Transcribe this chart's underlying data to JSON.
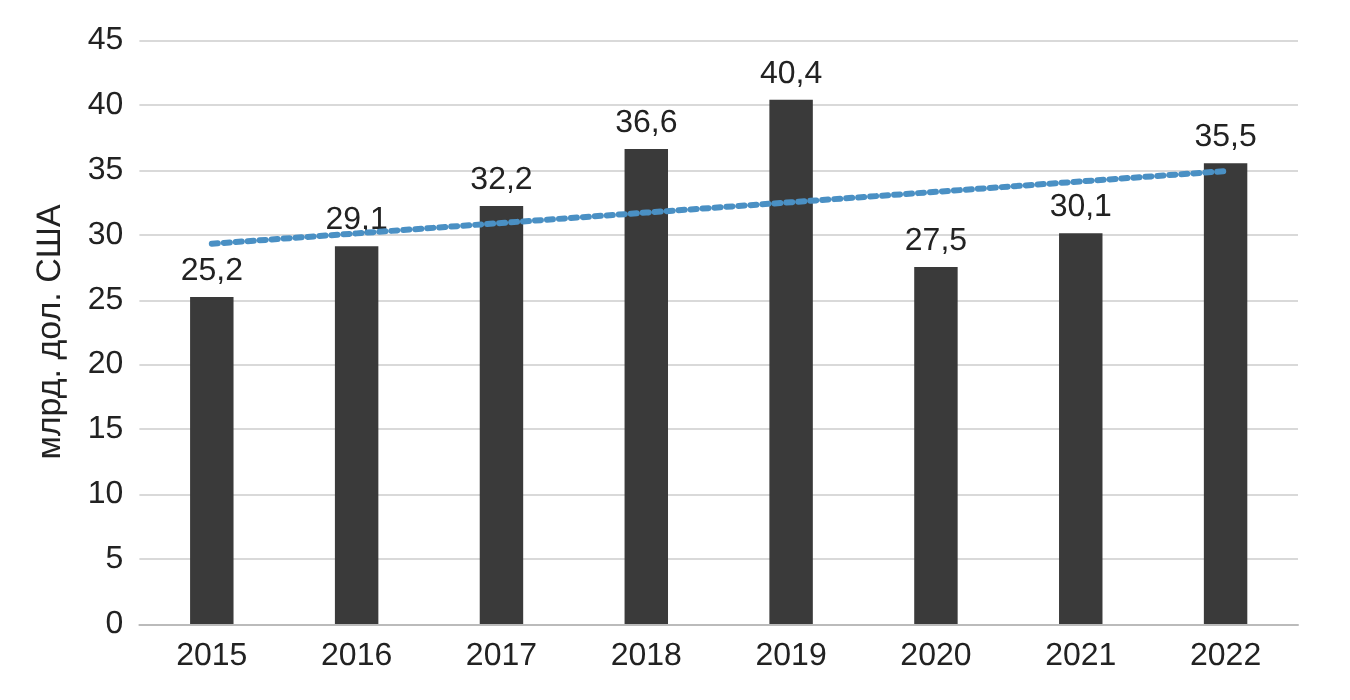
{
  "chart_data": {
    "type": "bar",
    "ylabel": "млрд. дол. США",
    "categories": [
      "2015",
      "2016",
      "2017",
      "2018",
      "2019",
      "2020",
      "2021",
      "2022"
    ],
    "series": [
      {
        "color": "#3a3a3a",
        "values": [
          25.2,
          29.1,
          32.2,
          36.6,
          40.4,
          27.5,
          30.1,
          35.5
        ],
        "value_labels": [
          "25,2",
          "29,1",
          "32,2",
          "36,6",
          "40,4",
          "27,5",
          "30,1",
          "35,5"
        ]
      },
      {
        "type": "line",
        "color": "#4a90c4",
        "line_style": "dotted",
        "marker": "none",
        "values": [
          29.3,
          30.1,
          30.9,
          31.7,
          32.5,
          33.3,
          34.1,
          34.9
        ]
      }
    ],
    "ylim": [
      0,
      45
    ],
    "yticks": [
      0,
      5,
      10,
      15,
      20,
      25,
      30,
      35,
      40,
      45
    ],
    "grid": "y"
  }
}
